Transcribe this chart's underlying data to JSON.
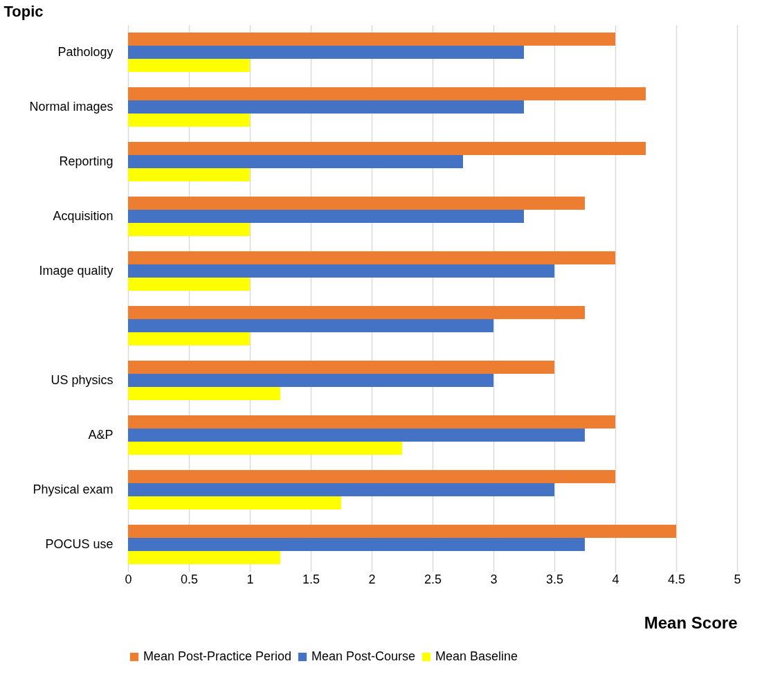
{
  "chart_data": {
    "type": "bar",
    "orientation": "horizontal",
    "xlabel": "Mean Score",
    "ylabel": "Topic",
    "categories": [
      "Pathology",
      "Normal images",
      "Reporting",
      "Acquisition",
      "Image quality",
      null,
      "US physics",
      "A&P",
      "Physical exam",
      "POCUS use"
    ],
    "series": [
      {
        "name": "Mean Post-Practice Period",
        "color": "#ed7d31",
        "values": [
          4,
          4.25,
          4.25,
          3.75,
          4,
          3.75,
          3.5,
          4,
          4,
          4.5
        ]
      },
      {
        "name": "Mean Post-Course",
        "color": "#4472c4",
        "values": [
          3.25,
          3.25,
          2.75,
          3.25,
          3.5,
          3,
          3,
          3.75,
          3.5,
          3.75
        ]
      },
      {
        "name": "Mean Baseline",
        "color": "#ffff00",
        "values": [
          1,
          1,
          1,
          1,
          1,
          1,
          1.25,
          2.25,
          1.75,
          1.25
        ]
      }
    ],
    "xlim": [
      0,
      5
    ],
    "xticks": [
      0,
      0.5,
      1,
      1.5,
      2,
      2.5,
      3,
      3.5,
      4,
      4.5,
      5
    ],
    "grid": "x",
    "legend": "bottom"
  }
}
